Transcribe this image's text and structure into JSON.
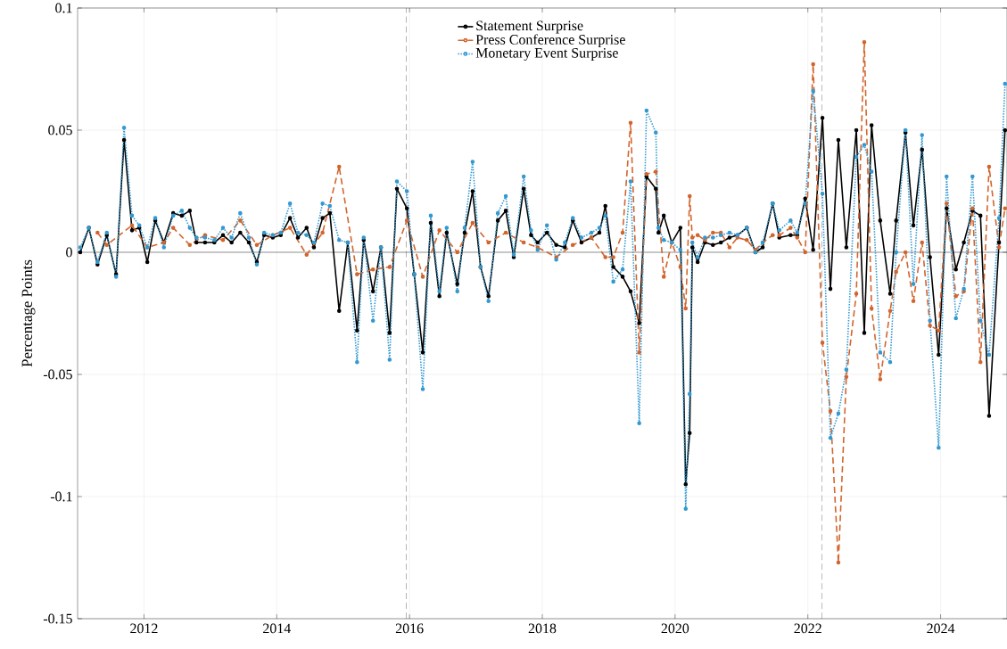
{
  "chart_data": {
    "type": "line",
    "ylabel": "Percentage Points",
    "xlim": [
      2011,
      2025
    ],
    "xticks": [
      2012,
      2014,
      2016,
      2018,
      2020,
      2022,
      2024
    ],
    "ylim": [
      -0.15,
      0.1
    ],
    "yticks": [
      -0.15,
      -0.1,
      -0.05,
      0,
      0.05,
      0.1
    ],
    "grid": true,
    "legend": "top",
    "marker": "circle",
    "ref_lines": [
      {
        "axis": "y",
        "value": 0,
        "color": "#000000",
        "line_style": "solid"
      },
      {
        "axis": "x",
        "value": 2015.95,
        "color": "#333333",
        "line_style": "dashed"
      },
      {
        "axis": "x",
        "value": 2022.21,
        "color": "#333333",
        "line_style": "dashed"
      }
    ],
    "series": [
      {
        "name": "Statement Surprise",
        "color": "#000000",
        "line_style": "solid",
        "x": [
          2011.04,
          2011.17,
          2011.3,
          2011.44,
          2011.58,
          2011.7,
          2011.82,
          2011.93,
          2012.05,
          2012.17,
          2012.3,
          2012.44,
          2012.57,
          2012.69,
          2012.79,
          2012.92,
          2013.06,
          2013.19,
          2013.32,
          2013.45,
          2013.58,
          2013.7,
          2013.81,
          2013.94,
          2014.06,
          2014.2,
          2014.32,
          2014.45,
          2014.56,
          2014.69,
          2014.8,
          2014.94,
          2015.07,
          2015.21,
          2015.31,
          2015.45,
          2015.57,
          2015.7,
          2015.81,
          2015.96,
          2016.07,
          2016.2,
          2016.32,
          2016.45,
          2016.56,
          2016.72,
          2016.83,
          2016.95,
          2017.07,
          2017.19,
          2017.33,
          2017.45,
          2017.57,
          2017.72,
          2017.83,
          2017.93,
          2018.07,
          2018.21,
          2018.34,
          2018.46,
          2018.59,
          2018.74,
          2018.86,
          2018.95,
          2019.07,
          2019.21,
          2019.33,
          2019.46,
          2019.57,
          2019.71,
          2019.75,
          2019.83,
          2019.95,
          2020.08,
          2020.16,
          2020.22,
          2020.26,
          2020.34,
          2020.45,
          2020.57,
          2020.69,
          2020.82,
          2020.94,
          2021.08,
          2021.21,
          2021.32,
          2021.47,
          2021.57,
          2021.74,
          2021.84,
          2021.96,
          2022.08,
          2022.22,
          2022.34,
          2022.46,
          2022.58,
          2022.73,
          2022.85,
          2022.96,
          2023.09,
          2023.24,
          2023.33,
          2023.47,
          2023.59,
          2023.72,
          2023.84,
          2023.97,
          2024.09,
          2024.23,
          2024.35,
          2024.48,
          2024.6,
          2024.73,
          2024.88,
          2024.97
        ],
        "values": [
          0.0,
          0.01,
          -0.005,
          0.007,
          -0.009,
          0.046,
          0.009,
          0.01,
          -0.004,
          0.013,
          0.004,
          0.016,
          0.015,
          0.017,
          0.004,
          0.004,
          0.004,
          0.007,
          0.004,
          0.008,
          0.004,
          -0.004,
          0.007,
          0.006,
          0.007,
          0.014,
          0.006,
          0.01,
          0.002,
          0.014,
          0.016,
          -0.024,
          0.004,
          -0.032,
          0.005,
          -0.016,
          0.002,
          -0.033,
          0.026,
          0.018,
          -0.009,
          -0.041,
          0.012,
          -0.018,
          0.008,
          -0.013,
          0.008,
          0.025,
          -0.006,
          -0.018,
          0.013,
          0.017,
          -0.002,
          0.026,
          0.007,
          0.004,
          0.008,
          0.003,
          0.002,
          0.013,
          0.004,
          0.006,
          0.008,
          0.019,
          -0.006,
          -0.01,
          -0.016,
          -0.029,
          0.031,
          0.026,
          0.008,
          0.015,
          0.004,
          0.01,
          -0.095,
          -0.074,
          0.002,
          -0.004,
          0.004,
          0.003,
          0.004,
          0.006,
          0.007,
          0.01,
          0.0,
          0.002,
          0.02,
          0.006,
          0.007,
          0.007,
          0.022,
          0.001,
          0.055,
          -0.015,
          0.046,
          0.002,
          0.05,
          -0.033,
          0.052,
          0.013,
          -0.017,
          0.013,
          0.049,
          0.011,
          0.042,
          -0.002,
          -0.042,
          0.018,
          -0.007,
          0.004,
          0.017,
          0.015,
          -0.067,
          0.004,
          0.05
        ]
      },
      {
        "name": "Press Conference Surprise",
        "color": "#d2652d",
        "line_style": "dashed",
        "x": [
          2011.3,
          2011.44,
          2011.82,
          2012.05,
          2012.3,
          2012.44,
          2012.69,
          2012.92,
          2013.19,
          2013.45,
          2013.7,
          2013.94,
          2014.2,
          2014.45,
          2014.69,
          2014.94,
          2015.21,
          2015.45,
          2015.7,
          2015.96,
          2016.2,
          2016.45,
          2016.72,
          2016.95,
          2017.19,
          2017.45,
          2017.72,
          2017.93,
          2018.21,
          2018.46,
          2018.74,
          2018.95,
          2019.07,
          2019.21,
          2019.33,
          2019.46,
          2019.57,
          2019.71,
          2019.83,
          2019.95,
          2020.08,
          2020.16,
          2020.22,
          2020.26,
          2020.34,
          2020.45,
          2020.57,
          2020.69,
          2020.82,
          2020.94,
          2021.08,
          2021.21,
          2021.32,
          2021.47,
          2021.57,
          2021.74,
          2021.84,
          2021.96,
          2022.08,
          2022.22,
          2022.34,
          2022.46,
          2022.58,
          2022.73,
          2022.85,
          2022.96,
          2023.09,
          2023.24,
          2023.33,
          2023.47,
          2023.59,
          2023.72,
          2023.84,
          2023.97,
          2024.09,
          2024.23,
          2024.35,
          2024.48,
          2024.6,
          2024.73,
          2024.88,
          2024.97
        ],
        "values": [
          0.008,
          0.003,
          0.011,
          0.002,
          0.004,
          0.01,
          0.003,
          0.007,
          0.005,
          0.013,
          0.003,
          0.007,
          0.01,
          -0.001,
          0.008,
          0.035,
          -0.009,
          -0.007,
          -0.006,
          0.013,
          -0.01,
          0.009,
          0.0,
          0.012,
          0.004,
          0.008,
          0.004,
          0.002,
          -0.002,
          0.003,
          0.006,
          -0.002,
          -0.002,
          0.008,
          0.053,
          -0.041,
          0.032,
          0.033,
          -0.01,
          0.004,
          -0.006,
          -0.023,
          0.023,
          0.006,
          0.007,
          0.005,
          0.008,
          0.008,
          0.002,
          0.006,
          0.005,
          0.001,
          0.004,
          0.007,
          0.007,
          0.01,
          0.006,
          0.0,
          0.077,
          -0.037,
          -0.065,
          -0.127,
          -0.051,
          -0.017,
          0.086,
          -0.023,
          -0.052,
          -0.024,
          -0.008,
          0.0,
          -0.02,
          0.004,
          -0.03,
          -0.032,
          0.02,
          -0.018,
          -0.016,
          0.018,
          -0.045,
          0.035,
          0.002,
          0.018
        ]
      },
      {
        "name": "Monetary Event Surprise",
        "color": "#3399d0",
        "line_style": "dotted",
        "x": [
          2011.04,
          2011.17,
          2011.3,
          2011.44,
          2011.58,
          2011.7,
          2011.82,
          2011.93,
          2012.05,
          2012.17,
          2012.3,
          2012.44,
          2012.57,
          2012.69,
          2012.79,
          2012.92,
          2013.06,
          2013.19,
          2013.32,
          2013.45,
          2013.58,
          2013.7,
          2013.81,
          2013.94,
          2014.06,
          2014.2,
          2014.32,
          2014.45,
          2014.56,
          2014.69,
          2014.8,
          2014.94,
          2015.07,
          2015.21,
          2015.31,
          2015.45,
          2015.57,
          2015.7,
          2015.81,
          2015.96,
          2016.07,
          2016.2,
          2016.32,
          2016.45,
          2016.56,
          2016.72,
          2016.83,
          2016.95,
          2017.07,
          2017.19,
          2017.33,
          2017.45,
          2017.57,
          2017.72,
          2017.83,
          2017.93,
          2018.07,
          2018.21,
          2018.34,
          2018.46,
          2018.59,
          2018.74,
          2018.86,
          2018.95,
          2019.07,
          2019.21,
          2019.33,
          2019.46,
          2019.57,
          2019.71,
          2019.75,
          2019.83,
          2019.95,
          2020.08,
          2020.16,
          2020.22,
          2020.26,
          2020.34,
          2020.45,
          2020.57,
          2020.69,
          2020.82,
          2020.94,
          2021.08,
          2021.21,
          2021.32,
          2021.47,
          2021.57,
          2021.74,
          2021.84,
          2021.96,
          2022.08,
          2022.22,
          2022.34,
          2022.46,
          2022.58,
          2022.73,
          2022.85,
          2022.96,
          2023.09,
          2023.24,
          2023.33,
          2023.47,
          2023.59,
          2023.72,
          2023.84,
          2023.97,
          2024.09,
          2024.23,
          2024.35,
          2024.48,
          2024.6,
          2024.73,
          2024.88,
          2024.97
        ],
        "values": [
          0.002,
          0.01,
          -0.004,
          0.008,
          -0.01,
          0.051,
          0.015,
          0.011,
          0.002,
          0.014,
          0.002,
          0.015,
          0.017,
          0.01,
          0.006,
          0.006,
          0.005,
          0.01,
          0.006,
          0.016,
          0.006,
          -0.005,
          0.008,
          0.007,
          0.008,
          0.02,
          0.008,
          0.007,
          0.004,
          0.02,
          0.019,
          0.005,
          0.004,
          -0.045,
          0.006,
          -0.028,
          0.002,
          -0.044,
          0.029,
          0.025,
          -0.009,
          -0.056,
          0.015,
          -0.016,
          0.01,
          -0.016,
          0.01,
          0.037,
          -0.006,
          -0.02,
          0.016,
          0.023,
          -0.001,
          0.031,
          0.009,
          0.001,
          0.011,
          -0.003,
          0.004,
          0.014,
          0.006,
          0.008,
          0.01,
          0.015,
          -0.012,
          -0.007,
          0.029,
          -0.07,
          0.058,
          0.049,
          0.01,
          0.005,
          0.004,
          0.001,
          -0.105,
          -0.058,
          0.004,
          -0.002,
          0.006,
          0.006,
          0.007,
          0.008,
          0.007,
          0.01,
          0.0,
          0.004,
          0.02,
          0.009,
          0.013,
          0.008,
          0.02,
          0.066,
          0.024,
          -0.076,
          -0.066,
          -0.048,
          0.039,
          0.044,
          0.033,
          -0.041,
          -0.045,
          0.0,
          0.05,
          -0.013,
          0.048,
          -0.028,
          -0.08,
          0.031,
          -0.027,
          -0.015,
          0.031,
          -0.028,
          -0.042,
          0.014,
          0.069
        ]
      }
    ]
  }
}
